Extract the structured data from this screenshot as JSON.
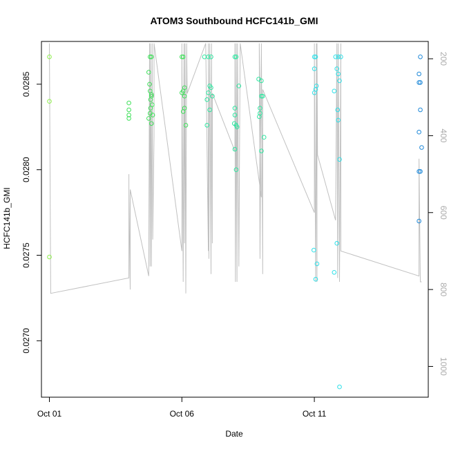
{
  "chart_data": {
    "type": "scatter",
    "title": "ATOM3 Southbound HCFC141b_GMI",
    "xlabel": "Date",
    "ylabel": "HCFC141b_GMI",
    "x_unit": "days since Oct 01",
    "xlim": [
      -0.3,
      14.3
    ],
    "ylim": [
      0.02667,
      0.02875
    ],
    "x_ticks": [
      {
        "value": 0,
        "label": "Oct 01"
      },
      {
        "value": 5,
        "label": "Oct 06"
      },
      {
        "value": 10,
        "label": "Oct 11"
      }
    ],
    "y_ticks": [
      {
        "value": 0.027,
        "label": "0.0270"
      },
      {
        "value": 0.0275,
        "label": "0.0275"
      },
      {
        "value": 0.028,
        "label": "0.0280"
      },
      {
        "value": 0.0285,
        "label": "0.0285"
      }
    ],
    "secondary_axis": {
      "label": "",
      "reversed": true,
      "lim": [
        1080,
        155
      ],
      "ticks": [
        {
          "value": 200,
          "label": "200"
        },
        {
          "value": 400,
          "label": "400"
        },
        {
          "value": 600,
          "label": "600"
        },
        {
          "value": 800,
          "label": "800"
        },
        {
          "value": 1000,
          "label": "1000"
        }
      ]
    },
    "grid": false,
    "series": [
      {
        "kind": "points",
        "color_scale": [
          "#8ef04a",
          "#3fe05a",
          "#2ee6a0",
          "#2ee0e8",
          "#1e88d8"
        ],
        "points": [
          {
            "x": 0.0,
            "y": 0.02866
          },
          {
            "x": 0.0,
            "y": 0.0284
          },
          {
            "x": 0.0,
            "y": 0.02749
          },
          {
            "x": 3.0,
            "y": 0.02839
          },
          {
            "x": 3.0,
            "y": 0.02835
          },
          {
            "x": 3.0,
            "y": 0.02832
          },
          {
            "x": 3.0,
            "y": 0.0283
          },
          {
            "x": 3.8,
            "y": 0.02866
          },
          {
            "x": 3.85,
            "y": 0.02866
          },
          {
            "x": 3.75,
            "y": 0.02857
          },
          {
            "x": 3.78,
            "y": 0.0285
          },
          {
            "x": 3.8,
            "y": 0.02846
          },
          {
            "x": 3.85,
            "y": 0.02843
          },
          {
            "x": 3.88,
            "y": 0.02838
          },
          {
            "x": 3.82,
            "y": 0.02836
          },
          {
            "x": 3.8,
            "y": 0.02833
          },
          {
            "x": 3.9,
            "y": 0.02832
          },
          {
            "x": 3.75,
            "y": 0.0283
          },
          {
            "x": 3.85,
            "y": 0.02827
          },
          {
            "x": 3.85,
            "y": 0.02844
          },
          {
            "x": 3.82,
            "y": 0.02841
          },
          {
            "x": 5.0,
            "y": 0.02866
          },
          {
            "x": 5.05,
            "y": 0.02866
          },
          {
            "x": 5.1,
            "y": 0.02848
          },
          {
            "x": 5.05,
            "y": 0.02846
          },
          {
            "x": 5.0,
            "y": 0.02845
          },
          {
            "x": 5.1,
            "y": 0.02843
          },
          {
            "x": 5.1,
            "y": 0.02836
          },
          {
            "x": 5.05,
            "y": 0.02834
          },
          {
            "x": 5.15,
            "y": 0.02826
          },
          {
            "x": 5.85,
            "y": 0.02866
          },
          {
            "x": 6.0,
            "y": 0.02866
          },
          {
            "x": 6.1,
            "y": 0.02866
          },
          {
            "x": 6.05,
            "y": 0.02849
          },
          {
            "x": 6.1,
            "y": 0.02848
          },
          {
            "x": 6.0,
            "y": 0.02845
          },
          {
            "x": 6.15,
            "y": 0.02843
          },
          {
            "x": 5.95,
            "y": 0.02841
          },
          {
            "x": 6.05,
            "y": 0.02835
          },
          {
            "x": 5.95,
            "y": 0.02826
          },
          {
            "x": 7.0,
            "y": 0.02866
          },
          {
            "x": 7.05,
            "y": 0.02866
          },
          {
            "x": 7.15,
            "y": 0.02849
          },
          {
            "x": 7.0,
            "y": 0.02836
          },
          {
            "x": 7.0,
            "y": 0.02832
          },
          {
            "x": 6.98,
            "y": 0.02827
          },
          {
            "x": 7.05,
            "y": 0.02826
          },
          {
            "x": 7.08,
            "y": 0.02825
          },
          {
            "x": 7.0,
            "y": 0.02812
          },
          {
            "x": 7.05,
            "y": 0.028
          },
          {
            "x": 7.9,
            "y": 0.02853
          },
          {
            "x": 8.0,
            "y": 0.02852
          },
          {
            "x": 8.0,
            "y": 0.02843
          },
          {
            "x": 8.05,
            "y": 0.02843
          },
          {
            "x": 7.95,
            "y": 0.02836
          },
          {
            "x": 7.95,
            "y": 0.02833
          },
          {
            "x": 7.92,
            "y": 0.02831
          },
          {
            "x": 8.1,
            "y": 0.02819
          },
          {
            "x": 8.0,
            "y": 0.02811
          },
          {
            "x": 10.0,
            "y": 0.02866
          },
          {
            "x": 10.05,
            "y": 0.02866
          },
          {
            "x": 10.0,
            "y": 0.02859
          },
          {
            "x": 10.08,
            "y": 0.02849
          },
          {
            "x": 10.05,
            "y": 0.02847
          },
          {
            "x": 10.0,
            "y": 0.02845
          },
          {
            "x": 9.98,
            "y": 0.02753
          },
          {
            "x": 10.1,
            "y": 0.02745
          },
          {
            "x": 10.05,
            "y": 0.02736
          },
          {
            "x": 10.8,
            "y": 0.02866
          },
          {
            "x": 10.9,
            "y": 0.02866
          },
          {
            "x": 11.0,
            "y": 0.02866
          },
          {
            "x": 10.85,
            "y": 0.02859
          },
          {
            "x": 10.9,
            "y": 0.02856
          },
          {
            "x": 10.95,
            "y": 0.02852
          },
          {
            "x": 10.75,
            "y": 0.02846
          },
          {
            "x": 10.88,
            "y": 0.02835
          },
          {
            "x": 10.9,
            "y": 0.02829
          },
          {
            "x": 10.95,
            "y": 0.02806
          },
          {
            "x": 10.85,
            "y": 0.02757
          },
          {
            "x": 10.75,
            "y": 0.0274
          },
          {
            "x": 10.95,
            "y": 0.02673
          },
          {
            "x": 14.0,
            "y": 0.02866
          },
          {
            "x": 13.95,
            "y": 0.02856
          },
          {
            "x": 14.0,
            "y": 0.02851
          },
          {
            "x": 13.95,
            "y": 0.02851
          },
          {
            "x": 14.0,
            "y": 0.02835
          },
          {
            "x": 13.95,
            "y": 0.02822
          },
          {
            "x": 14.05,
            "y": 0.02813
          },
          {
            "x": 13.95,
            "y": 0.02799
          },
          {
            "x": 14.0,
            "y": 0.02799
          },
          {
            "x": 13.95,
            "y": 0.0277
          }
        ]
      },
      {
        "kind": "line",
        "axis": "secondary",
        "color": "#c0c0c0",
        "points": [
          {
            "x": 0.0,
            "y": 160
          },
          {
            "x": 0.05,
            "y": 810
          },
          {
            "x": 3.0,
            "y": 770
          },
          {
            "x": 3.0,
            "y": 500
          },
          {
            "x": 3.0,
            "y": 540
          },
          {
            "x": 3.05,
            "y": 800
          },
          {
            "x": 3.05,
            "y": 540
          },
          {
            "x": 3.75,
            "y": 765
          },
          {
            "x": 3.78,
            "y": 160
          },
          {
            "x": 3.8,
            "y": 740
          },
          {
            "x": 3.82,
            "y": 160
          },
          {
            "x": 3.85,
            "y": 740
          },
          {
            "x": 3.88,
            "y": 160
          },
          {
            "x": 3.9,
            "y": 670
          },
          {
            "x": 3.95,
            "y": 400
          },
          {
            "x": 3.95,
            "y": 160
          },
          {
            "x": 5.0,
            "y": 700
          },
          {
            "x": 5.0,
            "y": 160
          },
          {
            "x": 5.05,
            "y": 780
          },
          {
            "x": 5.08,
            "y": 160
          },
          {
            "x": 5.1,
            "y": 680
          },
          {
            "x": 5.12,
            "y": 160
          },
          {
            "x": 5.15,
            "y": 810
          },
          {
            "x": 5.18,
            "y": 160
          },
          {
            "x": 5.2,
            "y": 290
          },
          {
            "x": 5.9,
            "y": 160
          },
          {
            "x": 6.0,
            "y": 700
          },
          {
            "x": 6.0,
            "y": 160
          },
          {
            "x": 6.02,
            "y": 720
          },
          {
            "x": 6.05,
            "y": 160
          },
          {
            "x": 6.1,
            "y": 760
          },
          {
            "x": 6.12,
            "y": 160
          },
          {
            "x": 6.15,
            "y": 680
          },
          {
            "x": 6.15,
            "y": 290
          },
          {
            "x": 7.0,
            "y": 440
          },
          {
            "x": 7.0,
            "y": 160
          },
          {
            "x": 7.02,
            "y": 780
          },
          {
            "x": 7.05,
            "y": 160
          },
          {
            "x": 7.08,
            "y": 780
          },
          {
            "x": 7.1,
            "y": 160
          },
          {
            "x": 7.15,
            "y": 740
          },
          {
            "x": 7.2,
            "y": 160
          },
          {
            "x": 8.0,
            "y": 560
          },
          {
            "x": 7.92,
            "y": 160
          },
          {
            "x": 7.95,
            "y": 720
          },
          {
            "x": 8.0,
            "y": 160
          },
          {
            "x": 8.05,
            "y": 760
          },
          {
            "x": 8.05,
            "y": 280
          },
          {
            "x": 10.0,
            "y": 600
          },
          {
            "x": 10.0,
            "y": 160
          },
          {
            "x": 10.05,
            "y": 780
          },
          {
            "x": 10.08,
            "y": 160
          },
          {
            "x": 10.1,
            "y": 780
          },
          {
            "x": 10.1,
            "y": 160
          },
          {
            "x": 10.12,
            "y": 450
          },
          {
            "x": 10.8,
            "y": 620
          },
          {
            "x": 10.85,
            "y": 160
          },
          {
            "x": 10.88,
            "y": 770
          },
          {
            "x": 10.9,
            "y": 160
          },
          {
            "x": 10.95,
            "y": 780
          },
          {
            "x": 11.0,
            "y": 160
          },
          {
            "x": 11.0,
            "y": 700
          },
          {
            "x": 13.95,
            "y": 765
          },
          {
            "x": 13.95,
            "y": 460
          },
          {
            "x": 14.0,
            "y": 780
          },
          {
            "x": 14.05,
            "y": 780
          }
        ]
      }
    ]
  }
}
